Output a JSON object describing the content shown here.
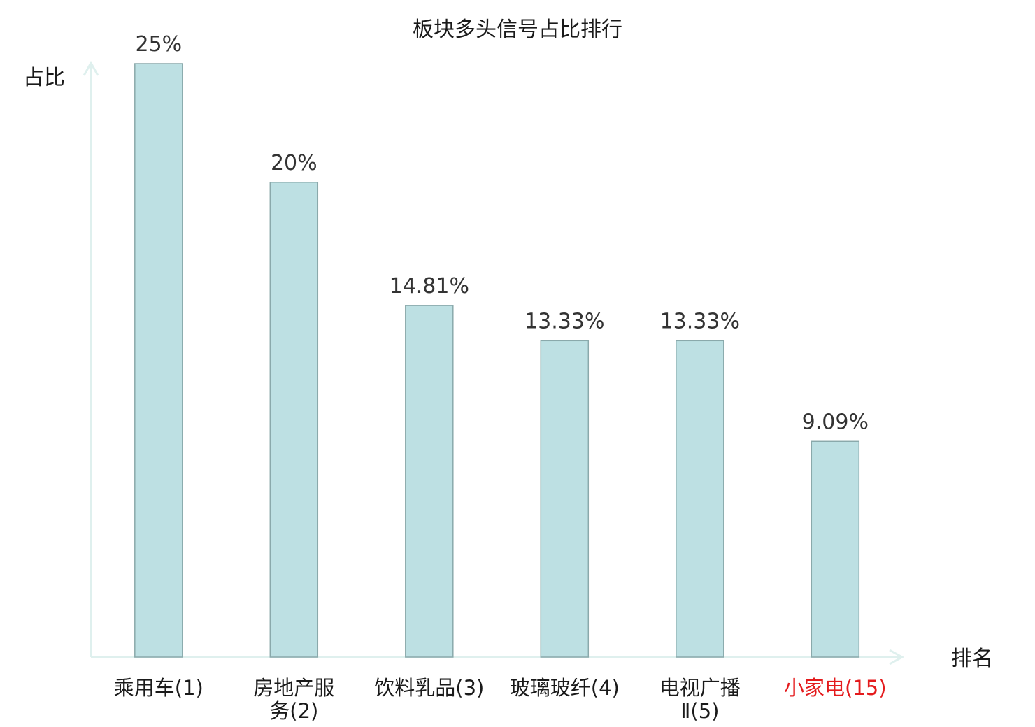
{
  "chart_data": {
    "type": "bar",
    "title": "板块多头信号占比排行",
    "ylabel": "占比",
    "xlabel": "排名",
    "ylim": [
      0,
      25
    ],
    "grid": false,
    "categories": [
      {
        "lines": [
          "乘用车(1)"
        ],
        "highlight": false
      },
      {
        "lines": [
          "房地产服",
          "务(2)"
        ],
        "highlight": false
      },
      {
        "lines": [
          "饮料乳品(3)"
        ],
        "highlight": false
      },
      {
        "lines": [
          "玻璃玻纤(4)"
        ],
        "highlight": false
      },
      {
        "lines": [
          "电视广播",
          "Ⅱ(5)"
        ],
        "highlight": false
      },
      {
        "lines": [
          "小家电(15)"
        ],
        "highlight": true
      }
    ],
    "values": [
      25,
      20,
      14.81,
      13.33,
      13.33,
      9.09
    ],
    "value_labels": [
      "25%",
      "20%",
      "14.81%",
      "13.33%",
      "13.33%",
      "9.09%"
    ],
    "colors": {
      "bar_fill": "#bde0e3",
      "bar_stroke": "#8aa9ab",
      "axis": "#dff0ee",
      "highlight_label": "#e41a1c"
    }
  }
}
